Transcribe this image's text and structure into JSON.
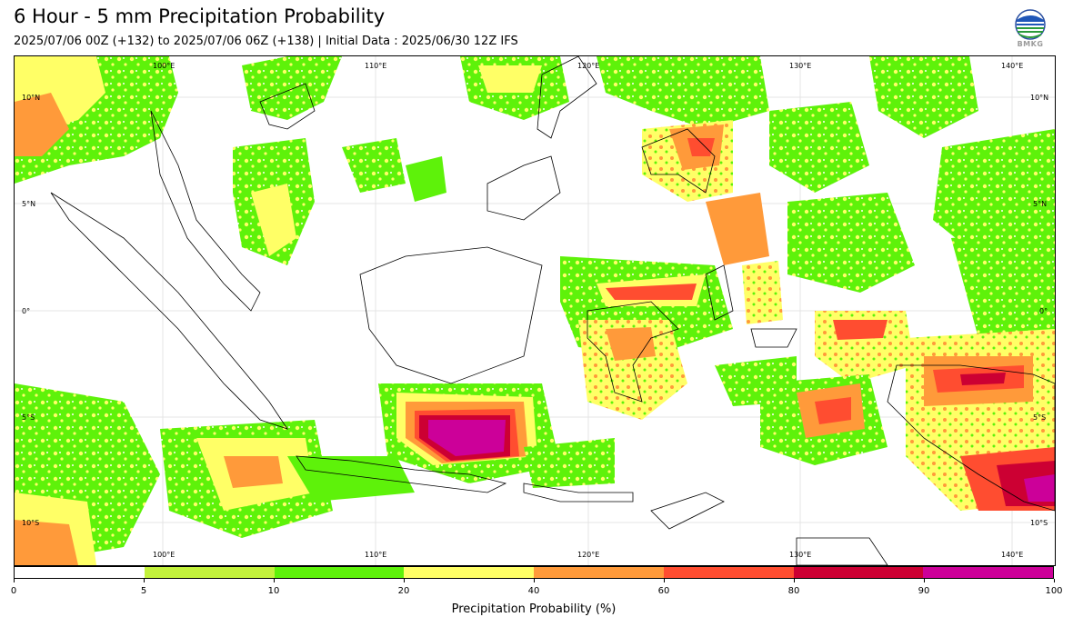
{
  "header": {
    "title": "6 Hour - 5 mm Precipitation Probability",
    "subtitle": "2025/07/06 00Z (+132) to 2025/07/06 06Z (+138) | Initial Data : 2025/06/30 12Z IFS",
    "logo_text": "BMKG"
  },
  "map": {
    "lon_range": [
      95,
      144
    ],
    "lat_range": [
      -12,
      12
    ],
    "lon_labels_top": [
      "100°E",
      "110°E",
      "120°E",
      "130°E",
      "140°E"
    ],
    "lon_labels_bottom": [
      "100°E",
      "110°E",
      "120°E",
      "130°E",
      "140°E"
    ],
    "lat_labels_left": [
      "10°N",
      "5°N",
      "0°",
      "5°S",
      "10°S"
    ],
    "lat_labels_right": [
      "10°N",
      "5°N",
      "0°",
      "5°S",
      "10°S"
    ]
  },
  "colorbar": {
    "title": "Precipitation Probability (%)",
    "ticks": [
      "0",
      "5",
      "10",
      "20",
      "40",
      "60",
      "80",
      "90",
      "100"
    ],
    "colors": [
      "#ffffff",
      "#c3f23c",
      "#5ef20a",
      "#ffff66",
      "#ff9a3a",
      "#ff4d30",
      "#cc0033",
      "#cc0099"
    ]
  }
}
